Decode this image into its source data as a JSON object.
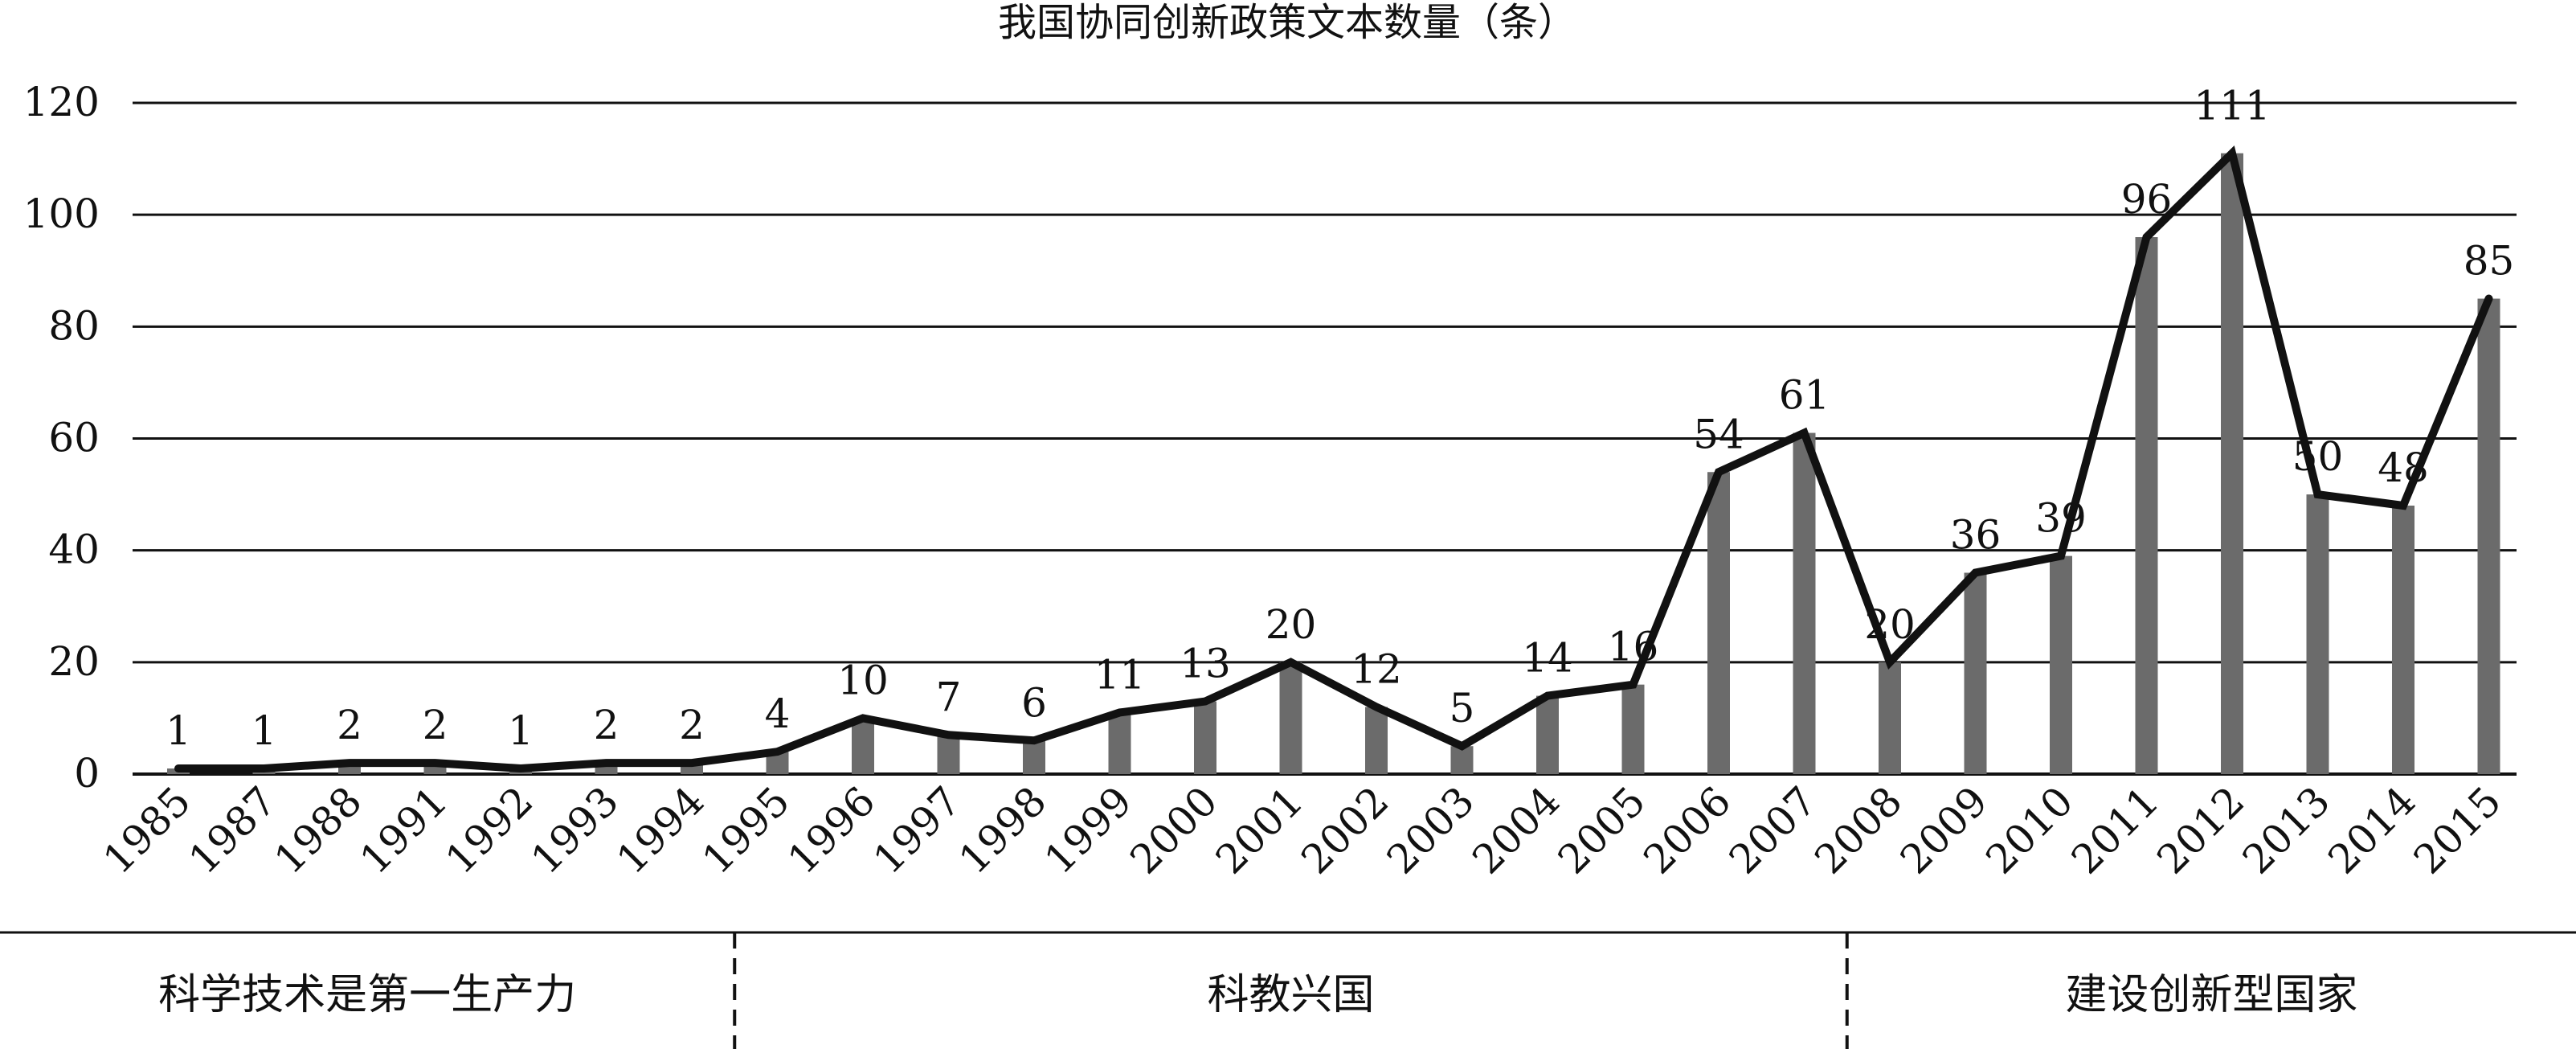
{
  "chart_data": {
    "type": "bar",
    "title": "我国协同创新政策文本数量（条）",
    "xlabel": "",
    "ylabel": "",
    "ylim": [
      0,
      120
    ],
    "yticks": [
      "0",
      "20",
      "40",
      "60",
      "80",
      "100",
      "120"
    ],
    "ytick_values": [
      0,
      20,
      40,
      60,
      80,
      100,
      120
    ],
    "grid": true,
    "categories": [
      "1985",
      "1987",
      "1988",
      "1991",
      "1992",
      "1993",
      "1994",
      "1995",
      "1996",
      "1997",
      "1998",
      "1999",
      "2000",
      "2001",
      "2002",
      "2003",
      "2004",
      "2005",
      "2006",
      "2007",
      "2008",
      "2009",
      "2010",
      "2011",
      "2012",
      "2013",
      "2014",
      "2015"
    ],
    "values": [
      1,
      1,
      2,
      2,
      1,
      2,
      2,
      4,
      10,
      7,
      6,
      11,
      13,
      20,
      12,
      5,
      14,
      16,
      54,
      61,
      20,
      36,
      39,
      96,
      111,
      50,
      48,
      85
    ],
    "overlay_line": "same values drawn as a line over the bars",
    "colors": {
      "bar": "#6b6b6b",
      "line": "#111111",
      "grid": "#111111"
    },
    "eras": [
      {
        "label": "科学技术是第一生产力",
        "from": "1985",
        "to": "1994"
      },
      {
        "label": "科教兴国",
        "from": "1995",
        "to": "2007"
      },
      {
        "label": "建设创新型国家",
        "from": "2008",
        "to": "2015"
      }
    ]
  }
}
